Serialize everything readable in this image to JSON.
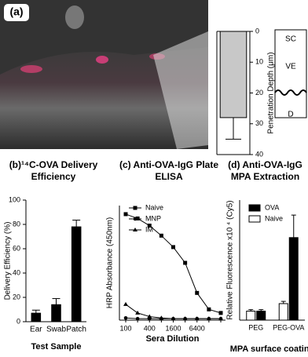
{
  "chart_data": [
    {
      "type": "bar",
      "label": "(a)",
      "categories": [
        null
      ],
      "values": [
        28
      ],
      "errors": [
        7
      ],
      "color": "#c8c8c8",
      "ylabel": "Penetration Depth (μm)",
      "ylim": [
        0,
        40
      ],
      "yticks": [
        0,
        10,
        20,
        30,
        40
      ],
      "y_inverted": true,
      "layers": [
        "SC",
        "VE",
        "D"
      ]
    },
    {
      "type": "bar",
      "title": "(b)¹⁴C-OVA Delivery Efficiency",
      "categories": [
        "Ear",
        "Swab",
        "Patch"
      ],
      "values": [
        7,
        14,
        78
      ],
      "errors": [
        2.5,
        5,
        5.5
      ],
      "color": "#000000",
      "xlabel": "Test Sample",
      "ylabel": "Delivery Efficiency (%)",
      "ylim": [
        0,
        100
      ],
      "yticks": [
        0,
        20,
        40,
        60,
        80,
        100
      ]
    },
    {
      "type": "line",
      "title": "(c) Anti-OVA-IgG Plate ELISA",
      "categories": [
        "100",
        null,
        "400",
        null,
        "1600",
        null,
        "6400",
        null,
        null
      ],
      "series": [
        {
          "name": "Naive",
          "color": "#000000",
          "marker": "square",
          "values": [
            1.48,
            1.42,
            1.32,
            1.18,
            1.02,
            0.8,
            0.38,
            0.15,
            0.1
          ]
        },
        {
          "name": "MNP",
          "color": "#000000",
          "marker": "circle",
          "values": [
            0.03,
            0.02,
            0.02,
            0.02,
            0.02,
            0.02,
            0.02,
            0.02,
            0.02
          ]
        },
        {
          "name": "IM",
          "color": "#000000",
          "marker": "triangle",
          "values": [
            0.22,
            0.1,
            0.05,
            0.03,
            0.02,
            0.02,
            0.02,
            0.02,
            0.02
          ]
        }
      ],
      "xlabel": "Sera Dilution",
      "ylabel": "HRP Absorbance (450nm)",
      "ylim": [
        0,
        1.6
      ]
    },
    {
      "type": "grouped_bar",
      "title": "(d) Anti-OVA-IgG MPA Extraction",
      "categories": [
        "PEG",
        "PEG-OVA"
      ],
      "series": [
        {
          "name": "OVA",
          "color": "#000000",
          "values": [
            0.6,
            5.5
          ],
          "errors": [
            0.1,
            1.5
          ]
        },
        {
          "name": "Naive",
          "color": "#ffffff",
          "values": [
            0.6,
            1.1
          ],
          "errors": [
            0.1,
            0.15
          ]
        }
      ],
      "xlabel": "MPA surface coating",
      "ylabel": "Relative Fluorescence x10 ⁴ (Cy5)",
      "ylim": [
        0,
        8
      ]
    }
  ]
}
